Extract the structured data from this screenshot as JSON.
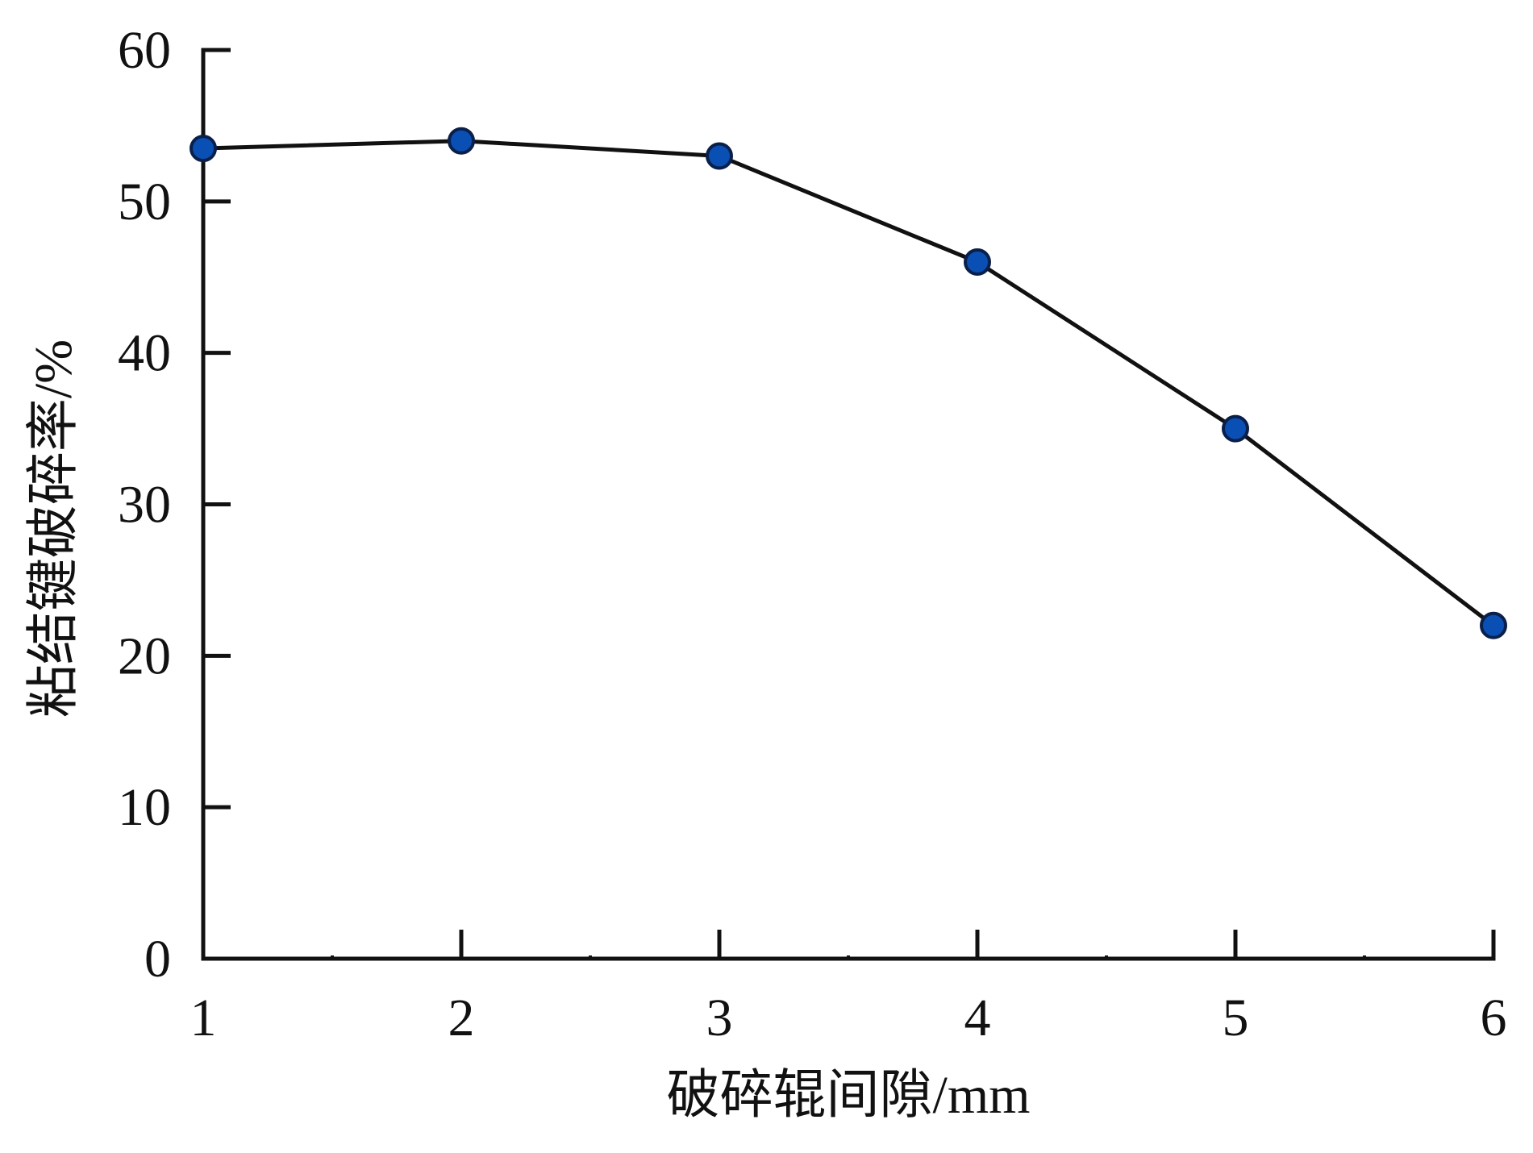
{
  "chart_data": {
    "type": "line",
    "title": "",
    "xlabel": "破碎辊间隙/mm",
    "ylabel": "粘结键破碎率/%",
    "x": [
      1,
      2,
      3,
      4,
      5,
      6
    ],
    "xticks": [
      "1",
      "2",
      "3",
      "4",
      "5",
      "6"
    ],
    "yticks": [
      "0",
      "10",
      "20",
      "30",
      "40",
      "50",
      "60"
    ],
    "xlim": [
      1,
      6
    ],
    "ylim": [
      0,
      60
    ],
    "grid": false,
    "legend": "none",
    "series": [
      {
        "values": [
          53.5,
          54.0,
          53.0,
          46.0,
          35.0,
          22.0
        ],
        "line_color": "#111111",
        "marker_color": "#0a4fb3",
        "marker_edge": "#0a1f4a"
      }
    ]
  }
}
